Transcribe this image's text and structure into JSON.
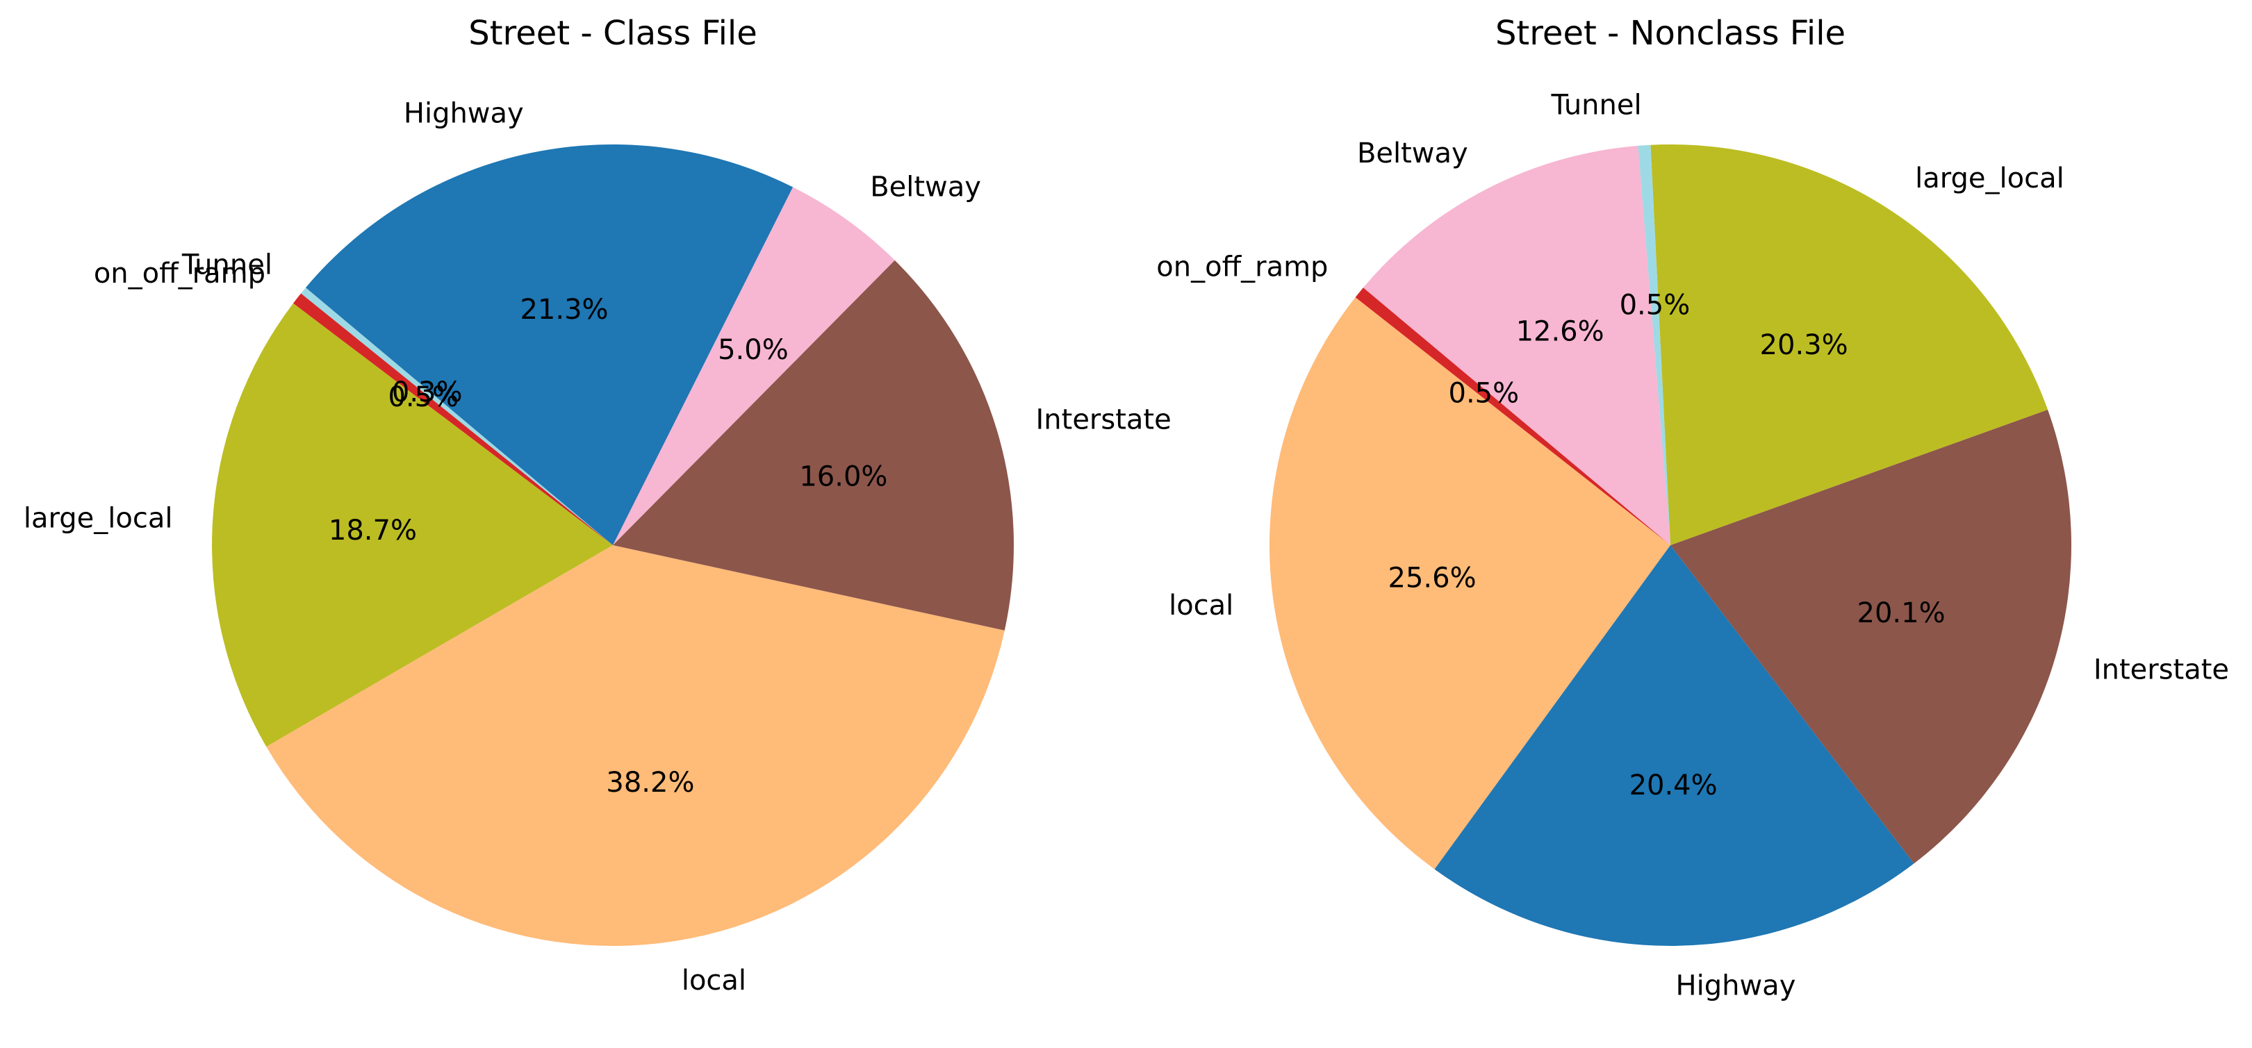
{
  "colors": {
    "Highway": "#1f77b4",
    "Beltway": "#f7b6d2",
    "Interstate": "#8c564b",
    "local": "#ffbb78",
    "large_local": "#bcbd22",
    "on_off_ramp": "#d62728",
    "Tunnel": "#9edae5"
  },
  "chart_data": [
    {
      "type": "pie",
      "title": "Street - Class File",
      "start_angle_deg": 140,
      "direction": "counterclockwise",
      "slices": [
        {
          "label": "Tunnel",
          "percent": 0.3,
          "pct_text": "0.3%"
        },
        {
          "label": "on_off_ramp",
          "percent": 0.5,
          "pct_text": "0.5%"
        },
        {
          "label": "large_local",
          "percent": 18.7,
          "pct_text": "18.7%"
        },
        {
          "label": "local",
          "percent": 38.2,
          "pct_text": "38.2%"
        },
        {
          "label": "Interstate",
          "percent": 16.0,
          "pct_text": "16.0%"
        },
        {
          "label": "Beltway",
          "percent": 5.0,
          "pct_text": "5.0%"
        },
        {
          "label": "Highway",
          "percent": 21.3,
          "pct_text": "21.3%"
        }
      ]
    },
    {
      "type": "pie",
      "title": "Street - Nonclass File",
      "start_angle_deg": 140,
      "direction": "counterclockwise",
      "slices": [
        {
          "label": "on_off_ramp",
          "percent": 0.5,
          "pct_text": "0.5%"
        },
        {
          "label": "local",
          "percent": 25.6,
          "pct_text": "25.6%"
        },
        {
          "label": "Highway",
          "percent": 20.4,
          "pct_text": "20.4%"
        },
        {
          "label": "Interstate",
          "percent": 20.1,
          "pct_text": "20.1%"
        },
        {
          "label": "large_local",
          "percent": 20.3,
          "pct_text": "20.3%"
        },
        {
          "label": "Tunnel",
          "percent": 0.5,
          "pct_text": "0.5%"
        },
        {
          "label": "Beltway",
          "percent": 12.6,
          "pct_text": "12.6%"
        }
      ]
    }
  ]
}
